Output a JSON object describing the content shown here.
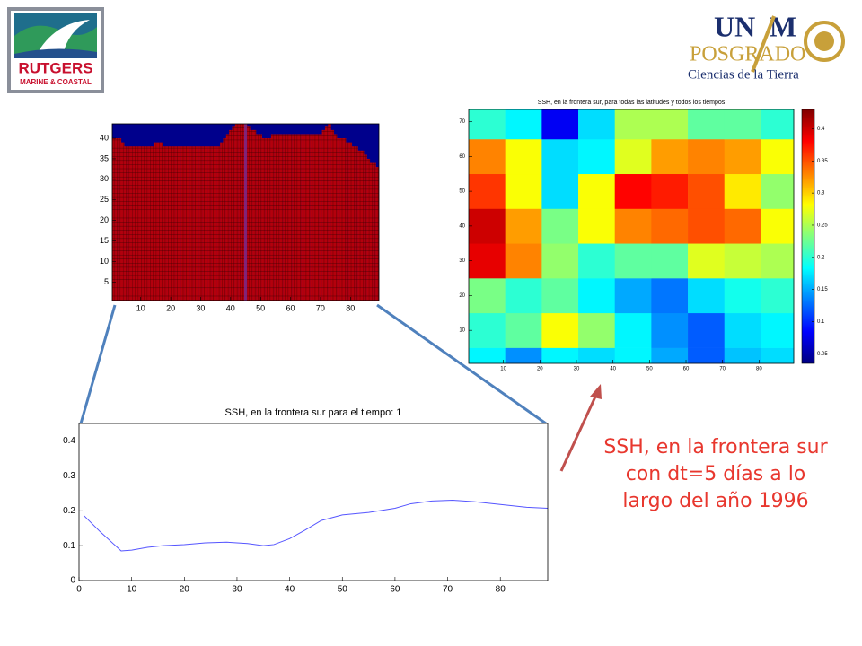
{
  "logos": {
    "left": {
      "name": "RUTGERS",
      "subtitle": "MARINE & COASTAL"
    },
    "right": {
      "name_a": "UN",
      "name_b": "M",
      "program": "POSGRADO",
      "field": "Ciencias de la Tierra"
    }
  },
  "caption": "SSH, en la frontera sur con dt=5 días a lo largo del año 1996",
  "chart_data": [
    {
      "type": "mask",
      "color": "#b4000c",
      "background": "#00008c",
      "highlight_x": 45,
      "highlight_color": "#7a2a8c",
      "xlim": [
        0.5,
        89.5
      ],
      "ylim": [
        0.5,
        43.5
      ],
      "xticks": [
        10,
        20,
        30,
        40,
        50,
        60,
        70,
        80
      ],
      "yticks": [
        5,
        10,
        15,
        20,
        25,
        30,
        35,
        40
      ],
      "x": [
        1,
        2,
        3,
        4,
        5,
        6,
        7,
        8,
        9,
        10,
        11,
        12,
        13,
        14,
        15,
        16,
        17,
        18,
        19,
        20,
        21,
        22,
        23,
        24,
        25,
        26,
        27,
        28,
        29,
        30,
        31,
        32,
        33,
        34,
        35,
        36,
        37,
        38,
        39,
        40,
        41,
        42,
        43,
        44,
        45,
        46,
        47,
        48,
        49,
        50,
        51,
        52,
        53,
        54,
        55,
        56,
        57,
        58,
        59,
        60,
        61,
        62,
        63,
        64,
        65,
        66,
        67,
        68,
        69,
        70,
        71,
        72,
        73,
        74,
        75,
        76,
        77,
        78,
        79,
        80,
        81,
        82,
        83,
        84,
        85,
        86,
        87,
        88,
        89
      ],
      "values": [
        40,
        40,
        40,
        39,
        38,
        38,
        38,
        38,
        38,
        38,
        38,
        38,
        38,
        38,
        39,
        39,
        39,
        38,
        38,
        38,
        38,
        38,
        38,
        38,
        38,
        38,
        38,
        38,
        38,
        38,
        38,
        38,
        38,
        38,
        38,
        38,
        39,
        40,
        41,
        42,
        43,
        43.5,
        43.5,
        43.5,
        43.5,
        43,
        42,
        42,
        41,
        41,
        40,
        40,
        40,
        41,
        41,
        41,
        41,
        41,
        41,
        41,
        41,
        41,
        41,
        41,
        41,
        41,
        41,
        41,
        41,
        41,
        42,
        43,
        43.5,
        42,
        41,
        40,
        40,
        40,
        39,
        39,
        38,
        38,
        37,
        37,
        36,
        35,
        34,
        34,
        33
      ]
    },
    {
      "type": "heatmap",
      "title": "SSH, en la frontera sur, para todas las latitudes y todos los tiempos",
      "colormap": "jet",
      "xlim": [
        0.5,
        89.5
      ],
      "ylim": [
        0.5,
        73.5
      ],
      "xticks": [
        10,
        20,
        30,
        40,
        50,
        60,
        70,
        80
      ],
      "yticks": [
        10,
        20,
        30,
        40,
        50,
        60,
        70
      ],
      "xbins": [
        0.5,
        10.5,
        20.5,
        30.5,
        40.5,
        50.5,
        60.5,
        70.5,
        80.5,
        89.5
      ],
      "ybins": [
        0.5,
        5,
        15,
        25,
        35,
        45,
        55,
        65,
        73.5
      ],
      "z": [
        [
          0.18,
          0.14,
          0.18,
          0.17,
          0.18,
          0.15,
          0.12,
          0.16,
          0.17
        ],
        [
          0.2,
          0.22,
          0.28,
          0.24,
          0.18,
          0.14,
          0.12,
          0.17,
          0.18
        ],
        [
          0.23,
          0.2,
          0.22,
          0.18,
          0.15,
          0.13,
          0.17,
          0.19,
          0.2
        ],
        [
          0.39,
          0.33,
          0.24,
          0.2,
          0.22,
          0.22,
          0.27,
          0.26,
          0.25
        ],
        [
          0.4,
          0.32,
          0.23,
          0.28,
          0.33,
          0.34,
          0.35,
          0.34,
          0.28
        ],
        [
          0.36,
          0.28,
          0.17,
          0.28,
          0.38,
          0.37,
          0.35,
          0.29,
          0.24
        ],
        [
          0.33,
          0.28,
          0.17,
          0.18,
          0.27,
          0.32,
          0.33,
          0.32,
          0.28
        ],
        [
          0.2,
          0.18,
          0.08,
          0.17,
          0.25,
          0.25,
          0.22,
          0.22,
          0.2
        ]
      ],
      "clim": [
        0.035,
        0.43
      ],
      "colorbar_ticks": [
        0.05,
        0.1,
        0.15,
        0.2,
        0.25,
        0.3,
        0.35,
        0.4
      ]
    },
    {
      "type": "line",
      "title": "SSH, en la frontera sur para el tiempo: 1",
      "color": "#5555ff",
      "xlim": [
        0,
        89
      ],
      "ylim": [
        0,
        0.45
      ],
      "xticks": [
        0,
        10,
        20,
        30,
        40,
        50,
        60,
        70,
        80
      ],
      "yticks": [
        0,
        0.1,
        0.2,
        0.3,
        0.4
      ],
      "x": [
        1,
        4,
        8,
        10,
        13,
        16,
        20,
        24,
        28,
        32,
        35,
        37,
        40,
        43,
        46,
        50,
        55,
        60,
        63,
        67,
        71,
        75,
        80,
        85,
        89
      ],
      "values": [
        0.185,
        0.14,
        0.085,
        0.087,
        0.095,
        0.1,
        0.103,
        0.108,
        0.11,
        0.106,
        0.1,
        0.103,
        0.12,
        0.145,
        0.172,
        0.188,
        0.195,
        0.207,
        0.22,
        0.228,
        0.23,
        0.226,
        0.218,
        0.21,
        0.207
      ]
    }
  ]
}
